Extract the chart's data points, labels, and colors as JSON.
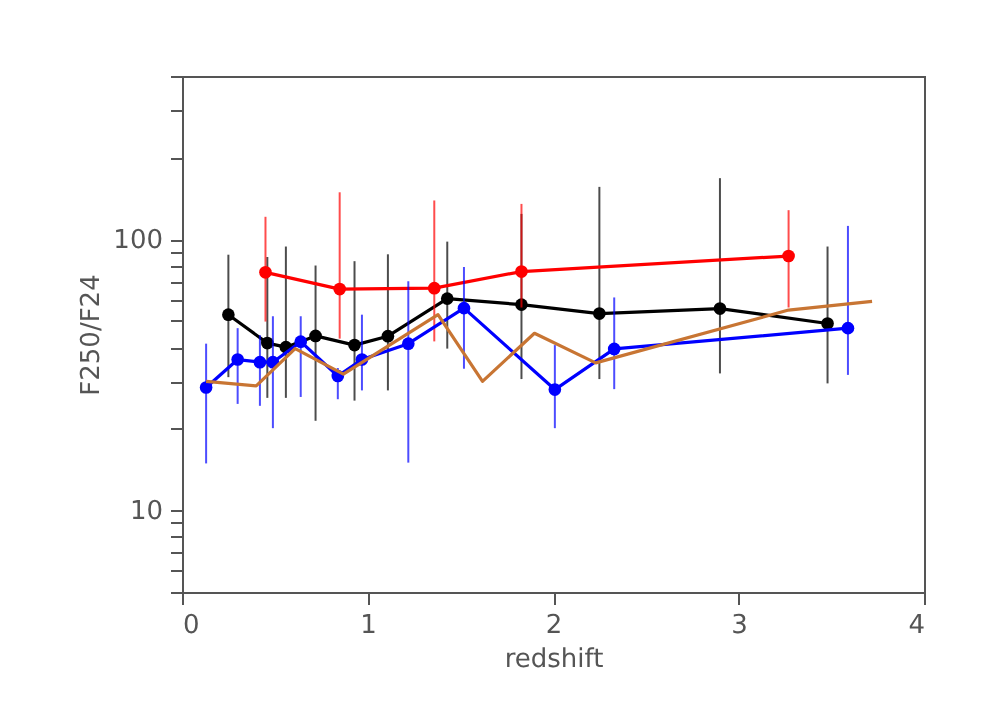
{
  "chart_data": {
    "type": "line",
    "xlabel": "redshift",
    "ylabel": "F250/F24",
    "log": "y",
    "grid": false,
    "xlim": [
      0,
      4
    ],
    "xticks": [
      0,
      1,
      2,
      3,
      4
    ],
    "ylim": [
      5,
      400
    ],
    "yticks": [
      {
        "value": 5,
        "label": null
      },
      {
        "value": 6,
        "label": null
      },
      {
        "value": 7,
        "label": null
      },
      {
        "value": 8,
        "label": null
      },
      {
        "value": 9,
        "label": null
      },
      10,
      {
        "value": 20,
        "label": null
      },
      {
        "value": 30,
        "label": null
      },
      {
        "value": 40,
        "label": null
      },
      {
        "value": 50,
        "label": null
      },
      {
        "value": 60,
        "label": null
      },
      {
        "value": 70,
        "label": null
      },
      {
        "value": 80,
        "label": null
      },
      {
        "value": 90,
        "label": null
      },
      100,
      {
        "value": 200,
        "label": null
      },
      {
        "value": 300,
        "label": null
      },
      {
        "value": 400,
        "label": null
      }
    ],
    "series": [
      {
        "color": "#000000",
        "marker": "circle",
        "x": [
          0.25,
          0.46,
          0.56,
          0.72,
          0.93,
          1.11,
          1.43,
          1.83,
          2.25,
          2.9,
          3.48
        ],
        "values": [
          52.7,
          41.4,
          40,
          44,
          40.7,
          43.9,
          60.4,
          57.4,
          53.2,
          55.5,
          48.9
        ],
        "errors": [
          [
            31,
            87.7
          ],
          [
            26,
            86
          ],
          [
            26,
            94
          ],
          [
            21.4,
            80
          ],
          [
            25.4,
            83
          ],
          [
            27.7,
            88
          ],
          [
            39.5,
            98
          ],
          [
            30.5,
            124
          ],
          [
            30.5,
            156
          ],
          [
            32,
            168
          ],
          [
            29.4,
            94
          ]
        ]
      },
      {
        "color": "#ff0000",
        "marker": "circle",
        "x": [
          0.45,
          0.85,
          1.36,
          1.83,
          3.27
        ],
        "values": [
          75.5,
          65.5,
          66,
          76,
          86.7
        ],
        "errors": [
          [
            49.7,
            121
          ],
          [
            43,
            149
          ],
          [
            42,
            139
          ],
          [
            56,
            135
          ],
          [
            56,
            128
          ]
        ]
      },
      {
        "color": "#0000ff",
        "marker": "circle",
        "x": [
          0.13,
          0.3,
          0.42,
          0.49,
          0.64,
          0.84,
          0.97,
          1.22,
          1.52,
          2.01,
          2.33,
          3.59
        ],
        "values": [
          28.4,
          36,
          35.2,
          35.2,
          41.9,
          31.3,
          36,
          41.2,
          55.7,
          27.9,
          39.4,
          47
        ],
        "errors": [
          [
            14.9,
            41.2
          ],
          [
            24.7,
            47
          ],
          [
            24.3,
            44.3
          ],
          [
            20.1,
            52
          ],
          [
            26.2,
            52
          ],
          [
            25.7,
            33.5
          ],
          [
            27.7,
            52.7
          ],
          [
            15,
            70
          ],
          [
            33.3,
            79
          ],
          [
            20.1,
            40.7
          ],
          [
            28,
            61
          ],
          [
            31.6,
            112
          ]
        ]
      },
      {
        "color": "#c87533",
        "marker": "none",
        "x": [
          0.13,
          0.4,
          0.61,
          0.87,
          1.38,
          1.62,
          1.9,
          2.23,
          3.27,
          3.72
        ],
        "values": [
          29.9,
          28.8,
          39.5,
          31.8,
          52.7,
          29.9,
          45,
          35,
          54.8,
          59
        ]
      }
    ]
  }
}
